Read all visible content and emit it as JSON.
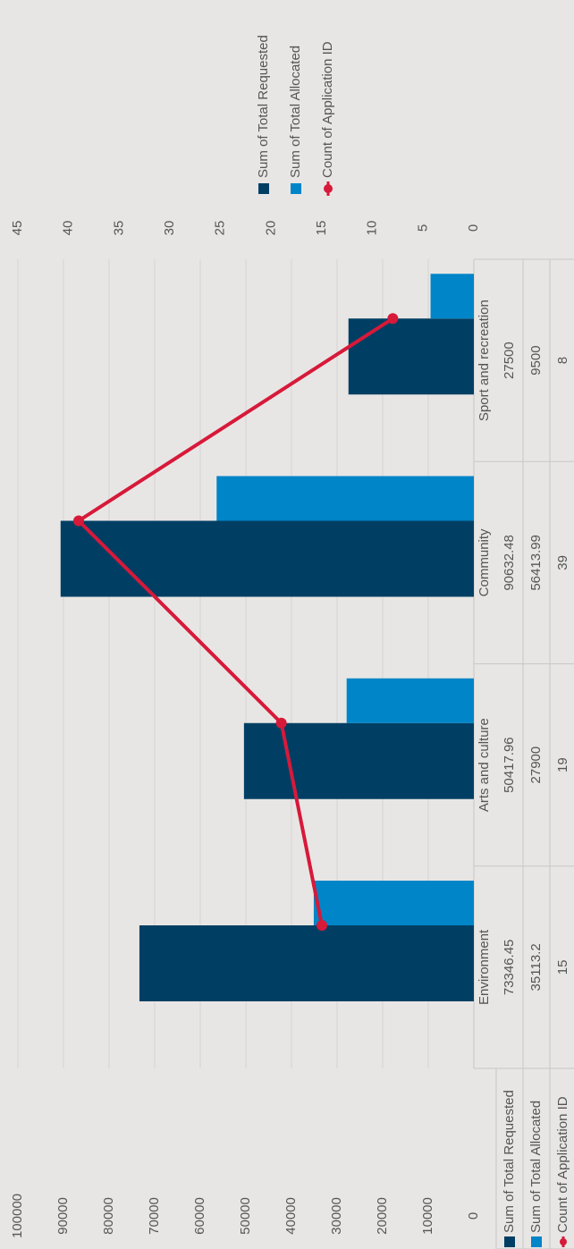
{
  "chart_data": {
    "type": "bar-line",
    "categories": [
      "Environment",
      "Arts and culture",
      "Community",
      "Sport and recreation"
    ],
    "series": [
      {
        "name": "Sum of Total Requested",
        "type": "bar",
        "color": "#003f63",
        "values": [
          73346.45,
          50417.96,
          90632.48,
          27500
        ]
      },
      {
        "name": "Sum of Total Allocated",
        "type": "bar",
        "color": "#0085c8",
        "values": [
          35113.2,
          27900,
          56413.99,
          9500
        ]
      },
      {
        "name": "Count of Application ID",
        "type": "line",
        "axis": "y2",
        "color": "#d7193a",
        "values": [
          15,
          19,
          39,
          8
        ]
      }
    ],
    "ylim": [
      0,
      100000
    ],
    "yticks": [
      0,
      10000,
      20000,
      30000,
      40000,
      50000,
      60000,
      70000,
      80000,
      90000,
      100000
    ],
    "y2lim": [
      0,
      45
    ],
    "y2ticks": [
      0,
      5,
      10,
      15,
      20,
      25,
      30,
      35,
      40,
      45
    ],
    "grid": true,
    "legend": "top-right",
    "data_table": true
  }
}
